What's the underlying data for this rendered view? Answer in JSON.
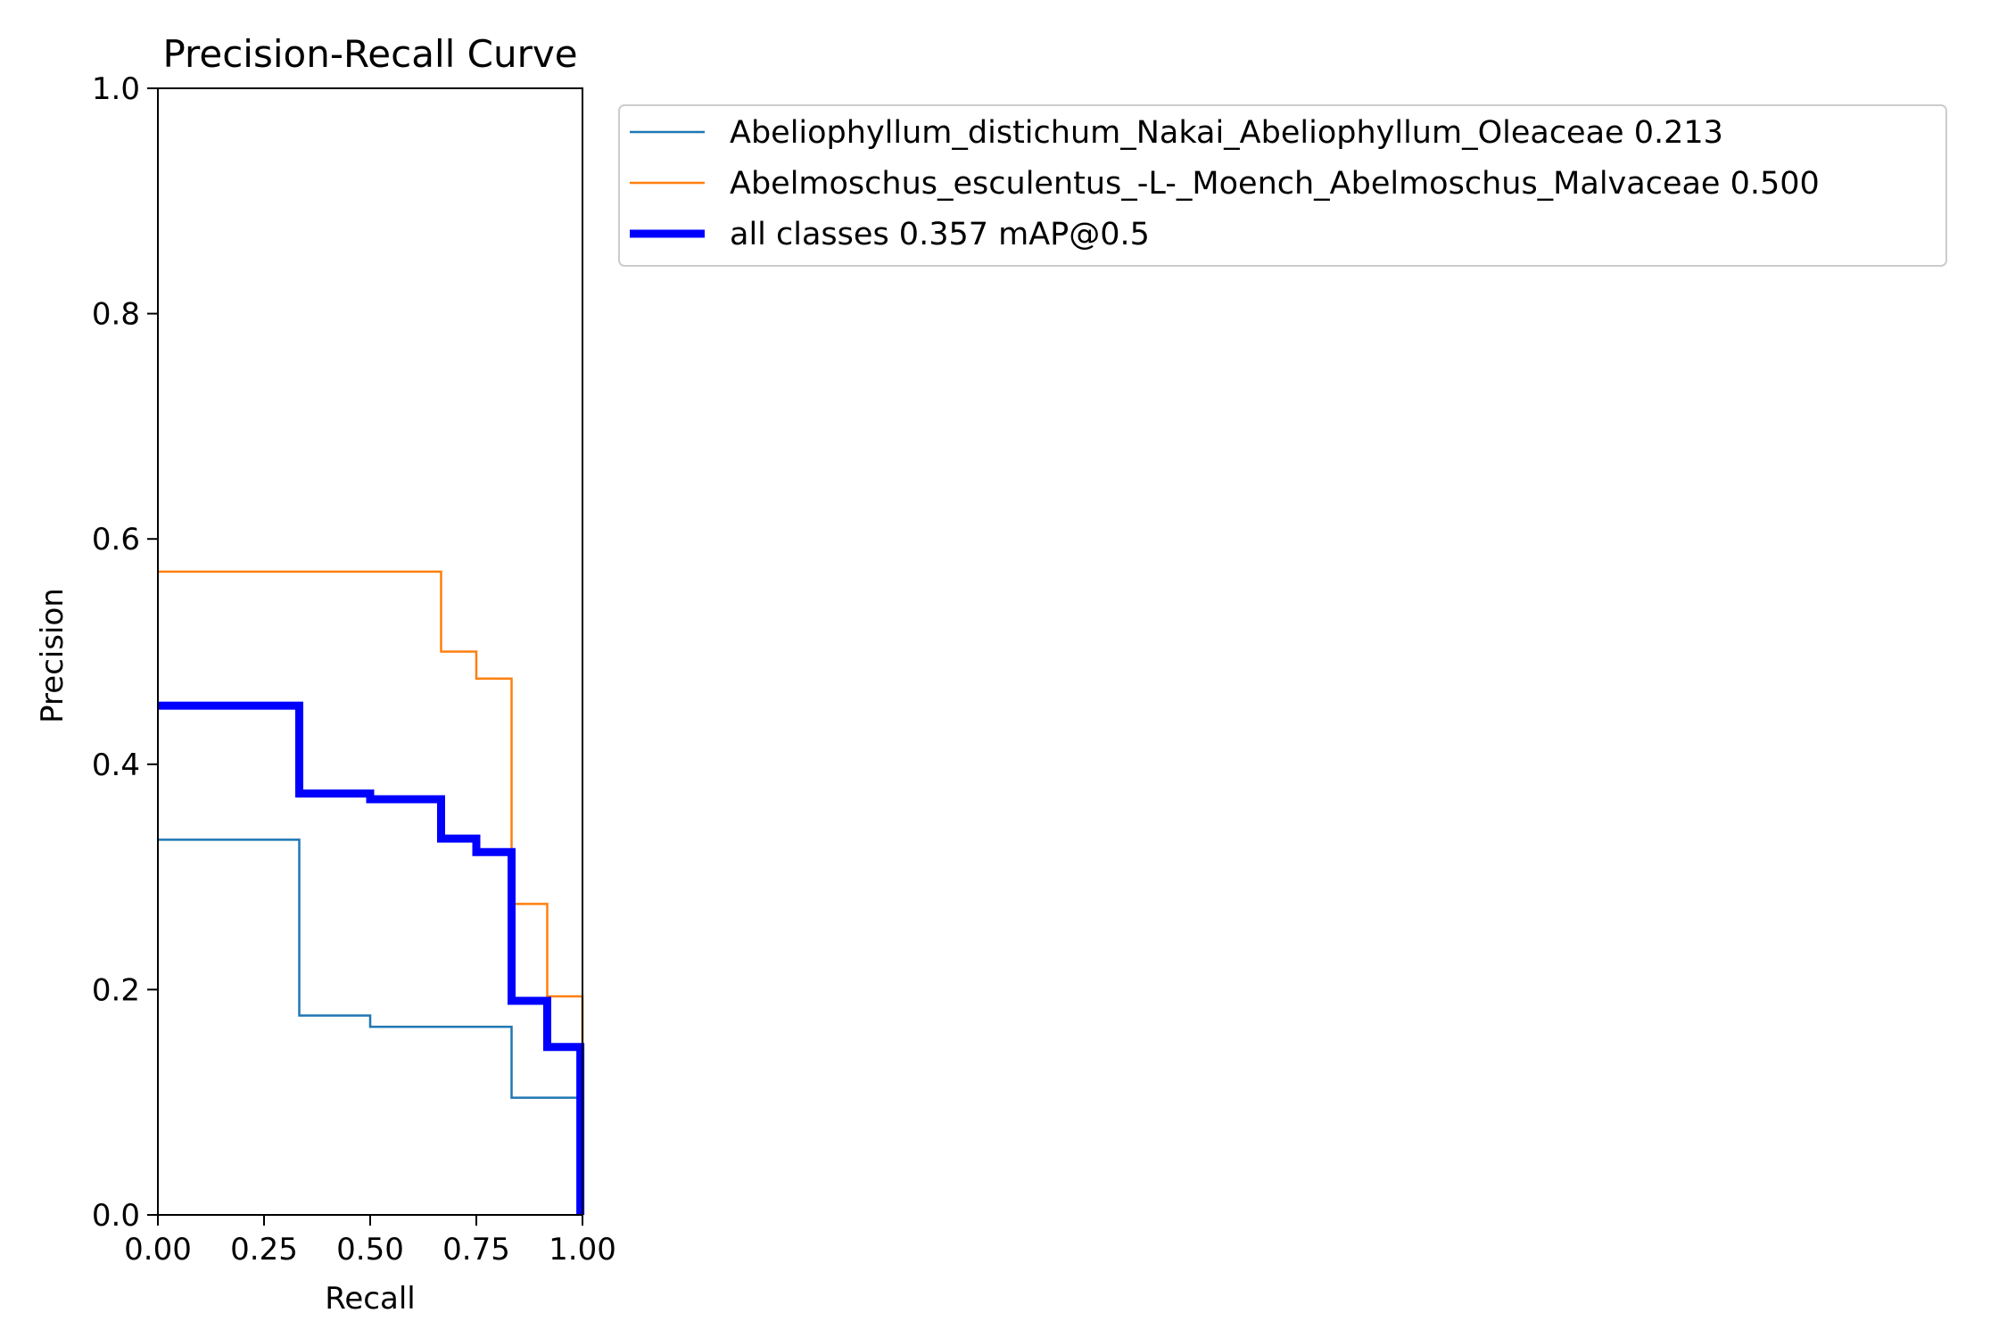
{
  "chart_data": {
    "type": "line",
    "title": "Precision-Recall Curve",
    "xlabel": "Recall",
    "ylabel": "Precision",
    "xlim": [
      0,
      1
    ],
    "ylim": [
      0,
      1
    ],
    "x_ticks": [
      "0.00",
      "0.25",
      "0.50",
      "0.75",
      "1.00"
    ],
    "y_ticks": [
      "0.0",
      "0.2",
      "0.4",
      "0.6",
      "0.8",
      "1.0"
    ],
    "x_tick_values": [
      0,
      0.25,
      0.5,
      0.75,
      1.0
    ],
    "y_tick_values": [
      0,
      0.2,
      0.4,
      0.6,
      0.8,
      1.0
    ],
    "grid": false,
    "legend_position": "outside-top-right",
    "series": [
      {
        "name": "Abeliophyllum_distichum_Nakai_Abeliophyllum_Oleaceae 0.213",
        "color": "#1f77b4",
        "style": "thin",
        "x": [
          0,
          0.333,
          0.333,
          0.5,
          0.5,
          0.833,
          0.833,
          0.995,
          0.995
        ],
        "y": [
          0.333,
          0.333,
          0.177,
          0.177,
          0.167,
          0.167,
          0.104,
          0.104,
          0.0
        ]
      },
      {
        "name": "Abelmoschus_esculentus_-L-_Moench_Abelmoschus_Malvaceae 0.500",
        "color": "#ff7f0e",
        "style": "thin",
        "x": [
          0,
          0.667,
          0.667,
          0.75,
          0.75,
          0.833,
          0.833,
          0.917,
          0.917,
          1.0,
          1.0
        ],
        "y": [
          0.571,
          0.571,
          0.5,
          0.5,
          0.476,
          0.476,
          0.276,
          0.276,
          0.194,
          0.194,
          0.0
        ]
      },
      {
        "name": "all classes 0.357 mAP@0.5",
        "color": "#0000ff",
        "style": "thick",
        "x": [
          0,
          0.333,
          0.333,
          0.5,
          0.5,
          0.667,
          0.667,
          0.75,
          0.75,
          0.833,
          0.833,
          0.917,
          0.917,
          0.995,
          0.995
        ],
        "y": [
          0.452,
          0.452,
          0.374,
          0.374,
          0.369,
          0.369,
          0.334,
          0.334,
          0.322,
          0.322,
          0.19,
          0.19,
          0.149,
          0.149,
          0.0
        ]
      }
    ]
  }
}
